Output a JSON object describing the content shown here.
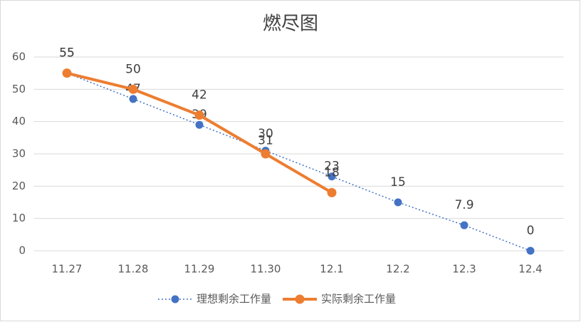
{
  "chart_data": {
    "type": "line",
    "title": "燃尽图",
    "categories": [
      "11.27",
      "11.28",
      "11.29",
      "11.30",
      "12.1",
      "12.2",
      "12.3",
      "12.4"
    ],
    "series": [
      {
        "name": "理想剩余工作量",
        "color": "#4472c4",
        "values": [
          55,
          47,
          39,
          31,
          23,
          15,
          7.9,
          0
        ]
      },
      {
        "name": "实际剩余工作量",
        "color": "#ed7d31",
        "values": [
          55,
          50,
          42,
          30,
          18,
          null,
          null,
          null
        ]
      }
    ],
    "ylim": [
      0,
      60
    ],
    "yticks": [
      0,
      10,
      20,
      30,
      40,
      50,
      60
    ],
    "grid": true,
    "legend": "bottom"
  }
}
